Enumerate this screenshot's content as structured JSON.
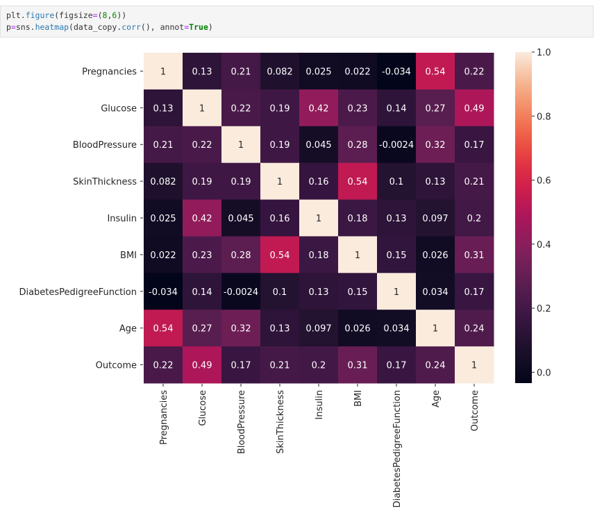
{
  "code_cell": {
    "lines": [
      [
        {
          "t": "plt.",
          "c": "plain"
        },
        {
          "t": "figure",
          "c": "fn"
        },
        {
          "t": "(figsize",
          "c": "plain"
        },
        {
          "t": "=",
          "c": "op"
        },
        {
          "t": "(",
          "c": "plain"
        },
        {
          "t": "8",
          "c": "num"
        },
        {
          "t": ",",
          "c": "plain"
        },
        {
          "t": "6",
          "c": "num"
        },
        {
          "t": "))",
          "c": "plain"
        }
      ],
      [
        {
          "t": "p",
          "c": "plain"
        },
        {
          "t": "=",
          "c": "op"
        },
        {
          "t": "sns.",
          "c": "plain"
        },
        {
          "t": "heatmap",
          "c": "fn"
        },
        {
          "t": "(data_copy.",
          "c": "plain"
        },
        {
          "t": "corr",
          "c": "fn"
        },
        {
          "t": "(), annot",
          "c": "plain"
        },
        {
          "t": "=",
          "c": "op"
        },
        {
          "t": "True",
          "c": "kw"
        },
        {
          "t": ")",
          "c": "plain"
        }
      ]
    ]
  },
  "chart_data": {
    "type": "heatmap",
    "title": "",
    "xlabel": "",
    "ylabel": "",
    "colormap": "rocket",
    "x_labels": [
      "Pregnancies",
      "Glucose",
      "BloodPressure",
      "SkinThickness",
      "Insulin",
      "BMI",
      "DiabetesPedigreeFunction",
      "Age",
      "Outcome"
    ],
    "y_labels": [
      "Pregnancies",
      "Glucose",
      "BloodPressure",
      "SkinThickness",
      "Insulin",
      "BMI",
      "DiabetesPedigreeFunction",
      "Age",
      "Outcome"
    ],
    "annotations": [
      [
        "1",
        "0.13",
        "0.21",
        "0.082",
        "0.025",
        "0.022",
        "-0.034",
        "0.54",
        "0.22"
      ],
      [
        "0.13",
        "1",
        "0.22",
        "0.19",
        "0.42",
        "0.23",
        "0.14",
        "0.27",
        "0.49"
      ],
      [
        "0.21",
        "0.22",
        "1",
        "0.19",
        "0.045",
        "0.28",
        "-0.0024",
        "0.32",
        "0.17"
      ],
      [
        "0.082",
        "0.19",
        "0.19",
        "1",
        "0.16",
        "0.54",
        "0.1",
        "0.13",
        "0.21"
      ],
      [
        "0.025",
        "0.42",
        "0.045",
        "0.16",
        "1",
        "0.18",
        "0.13",
        "0.097",
        "0.2"
      ],
      [
        "0.022",
        "0.23",
        "0.28",
        "0.54",
        "0.18",
        "1",
        "0.15",
        "0.026",
        "0.31"
      ],
      [
        "-0.034",
        "0.14",
        "-0.0024",
        "0.1",
        "0.13",
        "0.15",
        "1",
        "0.034",
        "0.17"
      ],
      [
        "0.54",
        "0.27",
        "0.32",
        "0.13",
        "0.097",
        "0.026",
        "0.034",
        "1",
        "0.24"
      ],
      [
        "0.22",
        "0.49",
        "0.17",
        "0.21",
        "0.2",
        "0.31",
        "0.17",
        "0.24",
        "1"
      ]
    ],
    "values": [
      [
        1,
        0.13,
        0.21,
        0.082,
        0.025,
        0.022,
        -0.034,
        0.54,
        0.22
      ],
      [
        0.13,
        1,
        0.22,
        0.19,
        0.42,
        0.23,
        0.14,
        0.27,
        0.49
      ],
      [
        0.21,
        0.22,
        1,
        0.19,
        0.045,
        0.28,
        -0.0024,
        0.32,
        0.17
      ],
      [
        0.082,
        0.19,
        0.19,
        1,
        0.16,
        0.54,
        0.1,
        0.13,
        0.21
      ],
      [
        0.025,
        0.42,
        0.045,
        0.16,
        1,
        0.18,
        0.13,
        0.097,
        0.2
      ],
      [
        0.022,
        0.23,
        0.28,
        0.54,
        0.18,
        1,
        0.15,
        0.026,
        0.31
      ],
      [
        -0.034,
        0.14,
        -0.0024,
        0.1,
        0.13,
        0.15,
        1,
        0.034,
        0.17
      ],
      [
        0.54,
        0.27,
        0.32,
        0.13,
        0.097,
        0.026,
        0.034,
        1,
        0.24
      ],
      [
        0.22,
        0.49,
        0.17,
        0.21,
        0.2,
        0.31,
        0.17,
        0.24,
        1
      ]
    ],
    "vmin": -0.034,
    "vmax": 1.0,
    "colorbar": {
      "ticks": [
        0.0,
        0.2,
        0.4,
        0.6,
        0.8,
        1.0
      ],
      "tick_labels": [
        "0.0",
        "0.2",
        "0.4",
        "0.6",
        "0.8",
        "1.0"
      ],
      "placement": "right"
    },
    "grid": false,
    "legend": "colorbar-right"
  }
}
